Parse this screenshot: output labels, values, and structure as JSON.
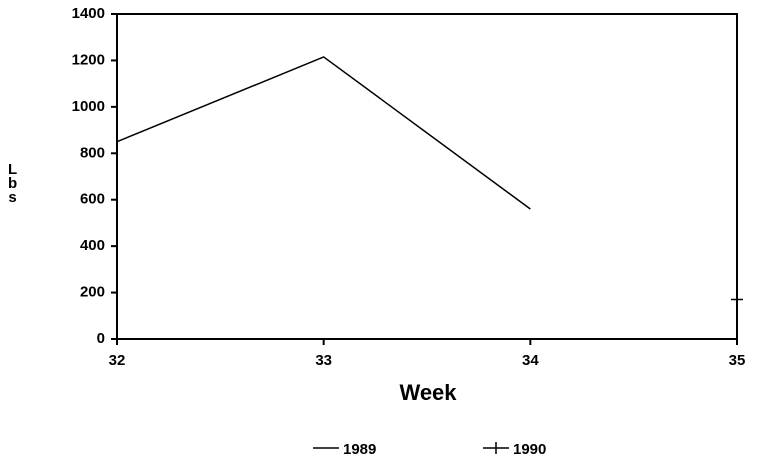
{
  "chart_data": {
    "type": "line",
    "x_label": "Week",
    "y_label": "Lbs",
    "x": [
      32,
      33,
      34,
      35
    ],
    "series": [
      {
        "name": "1989",
        "color": "#000000",
        "values": [
          850,
          1215,
          560,
          null
        ]
      },
      {
        "name": "1990",
        "color": "#000000",
        "values": [
          null,
          null,
          null,
          170
        ]
      }
    ],
    "xlim": [
      32,
      35
    ],
    "xticks": [
      32,
      33,
      34,
      35
    ],
    "ylim": [
      0,
      1400
    ],
    "yticks": [
      0,
      200,
      400,
      600,
      800,
      1000,
      1200,
      1400
    ],
    "grid": false,
    "legend": "bottom"
  }
}
